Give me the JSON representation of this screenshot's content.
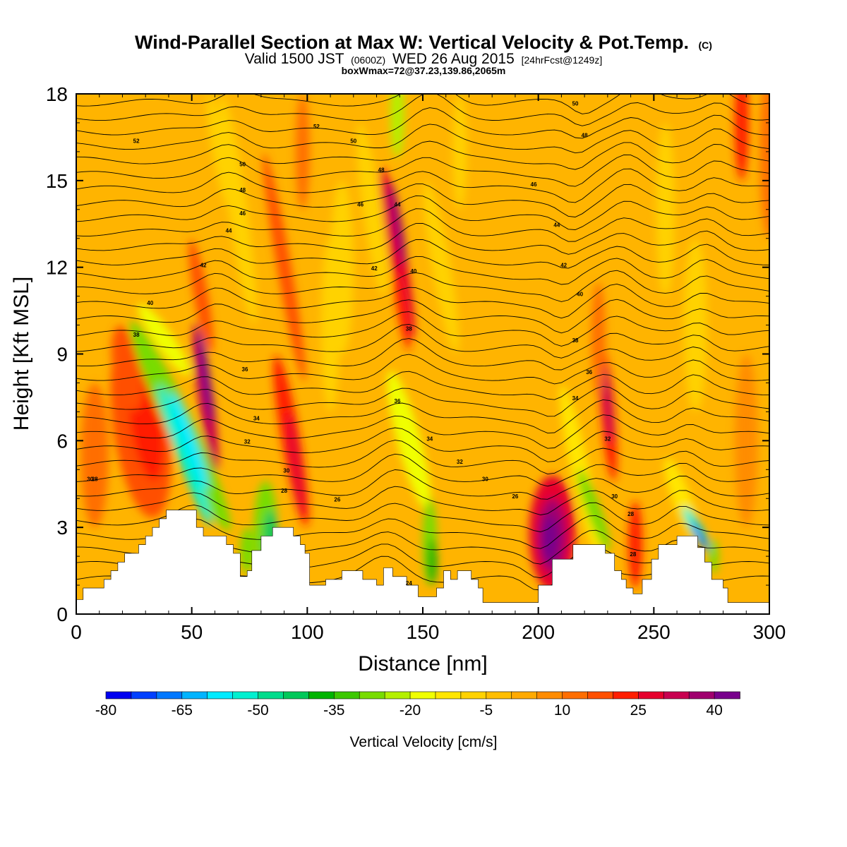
{
  "title": {
    "main": "Wind-Parallel Section at Max W: Vertical Velocity & Pot.Temp.",
    "copyright": "(C)",
    "valid_a": "Valid 1500 JST",
    "valid_z": "(0600Z)",
    "valid_b": "WED 26 Aug 2015",
    "valid_fcst": "[24hrFcst@1249z]",
    "box": "boxWmax=72@37.23,139.86,2065m"
  },
  "chart_data": {
    "type": "heatmap",
    "title": "Wind-Parallel Section at Max W: Vertical Velocity & Pot.Temp.",
    "xlabel": "Distance [nm]",
    "ylabel": "Height [Kft MSL]",
    "xlim": [
      0,
      300
    ],
    "ylim": [
      0,
      18
    ],
    "x_ticks": [
      "0",
      "50",
      "100",
      "150",
      "200",
      "250",
      "300"
    ],
    "y_ticks": [
      "0",
      "3",
      "6",
      "9",
      "12",
      "15",
      "18"
    ],
    "colorbar": {
      "label": "Vertical Velocity [cm/s]",
      "min": -80,
      "max": 45,
      "step": 5,
      "tick_labels": [
        "-80",
        "-65",
        "-50",
        "-35",
        "-20",
        "-5",
        "10",
        "25",
        "40"
      ],
      "colors": [
        "#0000f0",
        "#0040ff",
        "#0078ff",
        "#00b4ff",
        "#00ebff",
        "#00f0d0",
        "#00dc8c",
        "#00c85a",
        "#00b400",
        "#3cc800",
        "#78dc00",
        "#b4f000",
        "#f0ff00",
        "#ffe600",
        "#ffd200",
        "#ffbe00",
        "#ffaa00",
        "#ff8c00",
        "#ff6e00",
        "#ff5000",
        "#ff1e00",
        "#e6002d",
        "#c80050",
        "#a0006e",
        "#78008c"
      ]
    },
    "terrain_kft": [
      [
        0,
        0.5
      ],
      [
        3,
        0.5
      ],
      [
        3,
        0.9
      ],
      [
        12,
        0.9
      ],
      [
        12,
        1.2
      ],
      [
        15,
        1.2
      ],
      [
        15,
        1.5
      ],
      [
        18,
        1.5
      ],
      [
        18,
        1.8
      ],
      [
        21,
        1.8
      ],
      [
        21,
        2.1
      ],
      [
        27,
        2.1
      ],
      [
        27,
        2.4
      ],
      [
        30,
        2.4
      ],
      [
        30,
        2.7
      ],
      [
        33,
        2.7
      ],
      [
        33,
        3.0
      ],
      [
        36,
        3.0
      ],
      [
        36,
        3.3
      ],
      [
        39,
        3.3
      ],
      [
        39,
        3.6
      ],
      [
        52,
        3.6
      ],
      [
        52,
        3.0
      ],
      [
        55,
        3.0
      ],
      [
        55,
        2.7
      ],
      [
        65,
        2.7
      ],
      [
        65,
        2.4
      ],
      [
        68,
        2.4
      ],
      [
        68,
        2.1
      ],
      [
        71,
        2.1
      ],
      [
        71,
        1.5
      ],
      [
        71,
        1.3
      ],
      [
        74,
        1.3
      ],
      [
        74,
        1.5
      ],
      [
        76,
        1.5
      ],
      [
        76,
        2.2
      ],
      [
        80,
        2.2
      ],
      [
        80,
        2.7
      ],
      [
        85,
        2.7
      ],
      [
        85,
        3.0
      ],
      [
        94,
        3.0
      ],
      [
        94,
        2.7
      ],
      [
        97,
        2.7
      ],
      [
        97,
        2.4
      ],
      [
        99,
        2.4
      ],
      [
        99,
        2.1
      ],
      [
        101,
        2.1
      ],
      [
        101,
        1.8
      ],
      [
        101,
        1.0
      ],
      [
        108,
        1.0
      ],
      [
        108,
        1.2
      ],
      [
        115,
        1.2
      ],
      [
        115,
        1.5
      ],
      [
        124,
        1.5
      ],
      [
        124,
        1.2
      ],
      [
        130,
        1.2
      ],
      [
        130,
        1.0
      ],
      [
        133,
        1.0
      ],
      [
        133,
        1.6
      ],
      [
        137,
        1.6
      ],
      [
        137,
        1.3
      ],
      [
        143,
        1.3
      ],
      [
        143,
        1.0
      ],
      [
        148,
        1.0
      ],
      [
        148,
        0.6
      ],
      [
        156,
        0.6
      ],
      [
        156,
        0.9
      ],
      [
        159,
        0.9
      ],
      [
        159,
        1.5
      ],
      [
        162,
        1.5
      ],
      [
        162,
        1.2
      ],
      [
        165,
        1.2
      ],
      [
        165,
        1.5
      ],
      [
        171,
        1.5
      ],
      [
        171,
        1.2
      ],
      [
        174,
        1.2
      ],
      [
        174,
        0.9
      ],
      [
        176,
        0.9
      ],
      [
        176,
        0.4
      ],
      [
        196,
        0.4
      ],
      [
        196,
        0.4
      ],
      [
        200,
        0.4
      ],
      [
        200,
        1.0
      ],
      [
        206,
        1.0
      ],
      [
        206,
        1.9
      ],
      [
        215,
        1.9
      ],
      [
        215,
        2.4
      ],
      [
        229,
        2.4
      ],
      [
        229,
        2.1
      ],
      [
        233,
        2.1
      ],
      [
        233,
        1.5
      ],
      [
        236,
        1.5
      ],
      [
        236,
        1.2
      ],
      [
        238,
        1.2
      ],
      [
        238,
        0.9
      ],
      [
        241,
        0.9
      ],
      [
        241,
        0.7
      ],
      [
        245,
        0.7
      ],
      [
        245,
        1.2
      ],
      [
        249,
        1.2
      ],
      [
        249,
        1.9
      ],
      [
        252,
        1.9
      ],
      [
        252,
        2.4
      ],
      [
        260,
        2.4
      ],
      [
        260,
        2.7
      ],
      [
        269,
        2.7
      ],
      [
        269,
        2.3
      ],
      [
        272,
        2.3
      ],
      [
        272,
        1.8
      ],
      [
        275,
        1.8
      ],
      [
        275,
        1.2
      ],
      [
        280,
        1.2
      ],
      [
        280,
        0.9
      ],
      [
        282,
        0.9
      ],
      [
        282,
        0.4
      ],
      [
        300,
        0.4
      ],
      [
        300,
        0
      ]
    ],
    "contour_labels": [
      "28",
      "30",
      "38",
      "40",
      "42",
      "44",
      "46",
      "48",
      "50",
      "52",
      "36",
      "34",
      "32",
      "26",
      "24"
    ]
  }
}
